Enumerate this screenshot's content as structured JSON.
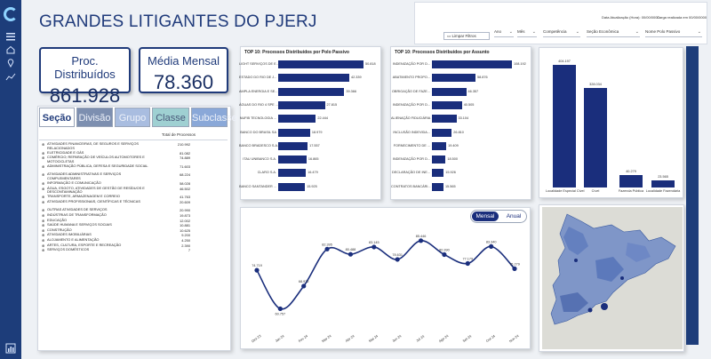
{
  "header": {
    "title": "GRANDES LITIGANTES DO PJERJ",
    "updated_left": "Data Atualização (Hora): 00/00/0000",
    "updated_right": "Carga realizada em 00/00/0000",
    "clear_button": "Limpar Filtros",
    "slicers": [
      "Ano",
      "Mês",
      "Competência",
      "Seção Econômica",
      "Nome Polo Passivo"
    ]
  },
  "kpis": {
    "distribuidos": {
      "label": "Proc. Distribuídos",
      "value": "861.928"
    },
    "media": {
      "label": "Média Mensal",
      "value": "78.360"
    }
  },
  "tabs": [
    "Seção",
    "Divisão",
    "Grupo",
    "Classe",
    "Subclasse"
  ],
  "table": {
    "column": "Total de Processos",
    "rows": [
      {
        "cat": "ATIVIDADES FINANCEIRAS, DE SEGUROS E SERVIÇOS RELACIONADOS",
        "val": "210.992"
      },
      {
        "cat": "ELETRICIDADE E GÁS",
        "val": "81.082"
      },
      {
        "cat": "COMÉRCIO; REPARAÇÃO DE VEÍCULOS AUTOMOTORES E MOTOCICLETAS",
        "val": "74.889"
      },
      {
        "cat": "ADMINISTRAÇÃO PÚBLICA, DEFESA E SEGURIDADE SOCIAL",
        "val": "71.603"
      },
      {
        "cat": "ATIVIDADES ADMINISTRATIVAS E SERVIÇOS COMPLEMENTARES",
        "val": "68.224"
      },
      {
        "cat": "INFORMAÇÃO E COMUNICAÇÃO",
        "val": "58.028"
      },
      {
        "cat": "ÁGUA, ESGOTO, ATIVIDADES DE GESTÃO DE RESÍDUOS E DESCONTAMINAÇÃO",
        "val": "46.502"
      },
      {
        "cat": "TRANSPORTE, ARMAZENAGEM E CORREIO",
        "val": "41.763"
      },
      {
        "cat": "ATIVIDADES PROFISSIONAIS, CIENTÍFICAS E TÉCNICAS",
        "val": "20.609"
      },
      {
        "cat": "OUTRAS ATIVIDADES DE SERVIÇOS",
        "val": "20.990"
      },
      {
        "cat": "INDÚSTRIAS DE TRANSFORMAÇÃO",
        "val": "19.873"
      },
      {
        "cat": "EDUCAÇÃO",
        "val": "12.002"
      },
      {
        "cat": "SAÚDE HUMANA E SERVIÇOS SOCIAIS",
        "val": "10.881"
      },
      {
        "cat": "CONSTRUÇÃO",
        "val": "10.625"
      },
      {
        "cat": "ATIVIDADES IMOBILIÁRIAS",
        "val": "9.200"
      },
      {
        "cat": "ALOJAMENTO E ALIMENTAÇÃO",
        "val": "4.250"
      },
      {
        "cat": "ARTES, CULTURA, ESPORTE E RECREAÇÃO",
        "val": "2.390"
      },
      {
        "cat": "SERVIÇOS DOMÉSTICOS",
        "val": "7"
      }
    ]
  },
  "chart_data": [
    {
      "type": "bar",
      "orientation": "horizontal",
      "title": "TOP 10: Processos Distribuídos por Polo Passivo",
      "categories": [
        "LIGHT SERVIÇOS DE E...",
        "ESTADO DO RIO DE J...",
        "AMPLA ENERGIA E SE...",
        "ÁGUAS DO RIO 4 SPE ...",
        "NUFIB TECNOLOGIA ...",
        "BANCO DO BRASIL SA",
        "BANCO BRADESCO S.A.",
        "ITAU UNIBANCO S.A.",
        "CLARO S.A.",
        "BANCO SANTANDER ..."
      ],
      "values": [
        50818,
        42339,
        39366,
        27815,
        22444,
        18979,
        17557,
        16865,
        16479,
        15925
      ],
      "labels": [
        "50.818",
        "42.339",
        "39.366",
        "27.815",
        "22.444",
        "18.979",
        "17.557",
        "16.865",
        "16.479",
        "15.925"
      ]
    },
    {
      "type": "bar",
      "orientation": "horizontal",
      "title": "TOP 10: Processos Distribuídos por Assunto",
      "categories": [
        "INDENIZAÇÃO POR D...",
        "ABATIMENTO PROPO...",
        "OBRIGAÇÃO DE FAZE...",
        "INDENIZAÇÃO POR D...",
        "ALIENAÇÃO FIDUCIÁRIA",
        "INCLUSÃO INDEVIDA...",
        "FORNECIMENTO DE ...",
        "INDENIZAÇÃO POR D...",
        "DECLARAÇÃO DE INE...",
        "CONTRATOS BANCÁRI..."
      ],
      "values": [
        108192,
        58876,
        46357,
        40505,
        33104,
        26810,
        19409,
        18500,
        15926,
        15565
      ],
      "labels": [
        "108.192",
        "58.876",
        "46.357",
        "40.505",
        "33.104",
        "26.810",
        "19.409",
        "18.500",
        "15.926",
        "15.565"
      ]
    },
    {
      "type": "bar",
      "orientation": "vertical",
      "categories": [
        "Localidade Especial Cível",
        "Cível",
        "Fazenda Pública",
        "Localidade Fazendária"
      ],
      "values": [
        404197,
        328034,
        40279,
        23565
      ],
      "labels": [
        "404.197",
        "328.034",
        "40.279",
        "23.565"
      ]
    },
    {
      "type": "line",
      "toggle": [
        "Mensal",
        "Anual"
      ],
      "categories": [
        "Dez 23",
        "Jan 24",
        "Fev 24",
        "Mar 24",
        "Abr 24",
        "Mai 24",
        "Jun 24",
        "Jul 24",
        "Ago 24",
        "Set 24",
        "Out 24",
        "Nov 24"
      ],
      "values": [
        74719,
        60757,
        68972,
        82395,
        80488,
        83145,
        78631,
        85446,
        80390,
        77179,
        83340,
        75279
      ],
      "labels": [
        "74.719",
        "60.757",
        "68.972",
        "82.395",
        "80.488",
        "83.145",
        "78.631",
        "85.446",
        "80.390",
        "77.179",
        "83.340",
        "75.279"
      ],
      "ylim": [
        58000,
        87000
      ]
    }
  ]
}
